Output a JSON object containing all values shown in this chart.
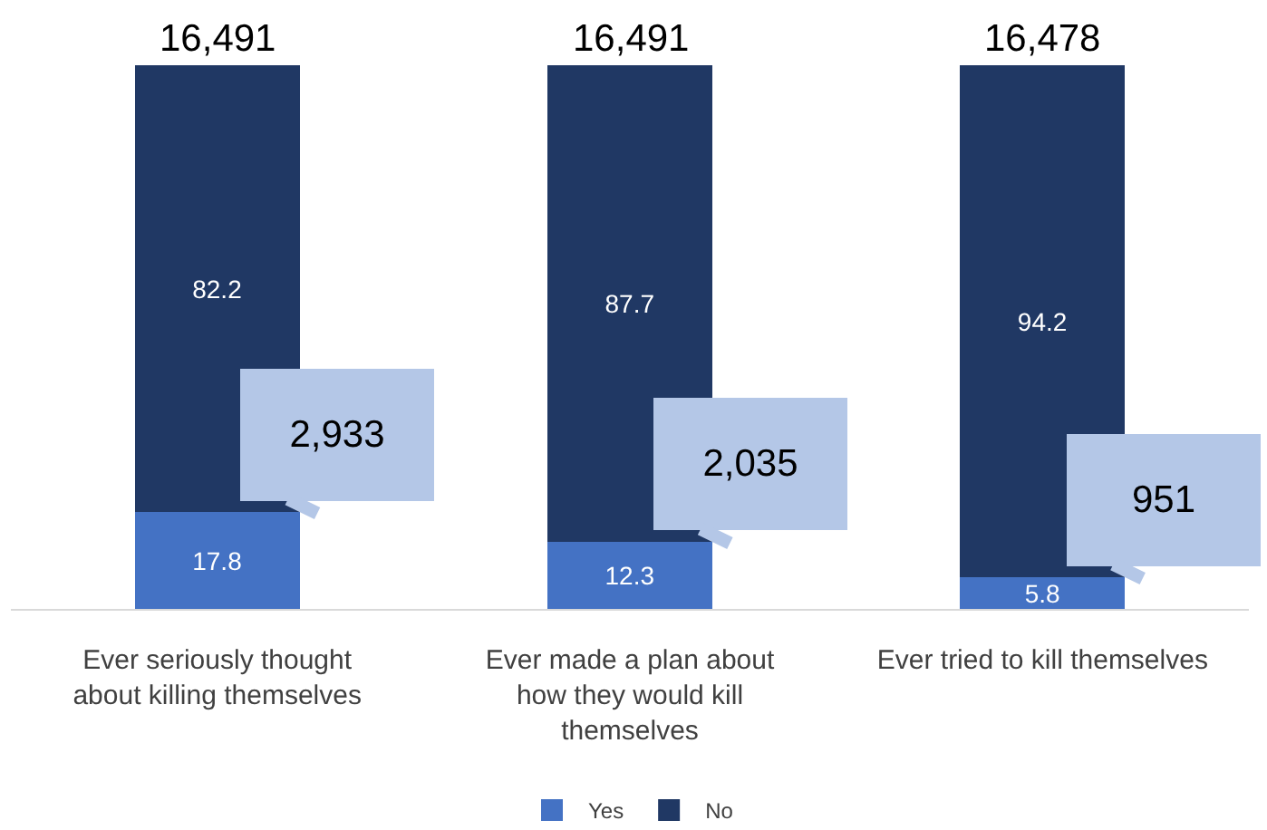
{
  "chart_data": {
    "type": "bar",
    "stacked": true,
    "categories": [
      "Ever seriously thought about killing themselves",
      "Ever made a plan about how they would kill themselves",
      "Ever tried to kill themselves"
    ],
    "series": [
      {
        "name": "Yes",
        "color": "#4472c4",
        "values": [
          17.8,
          12.3,
          5.8
        ]
      },
      {
        "name": "No",
        "color": "#203864",
        "values": [
          82.2,
          87.7,
          94.2
        ]
      }
    ],
    "data_labels": true,
    "annotations": [
      {
        "text": "16,491",
        "x": "Ever seriously thought about killing themselves",
        "y": 100
      },
      {
        "text": "16,491",
        "x": "Ever made a plan about how they would kill themselves",
        "y": 100
      },
      {
        "text": "16,478",
        "x": "Ever tried to kill themselves",
        "y": 100
      },
      {
        "text": "2,933",
        "x": "Ever seriously thought about killing themselves",
        "y": 17.8
      },
      {
        "text": "2,035",
        "x": "Ever made a plan about how they would kill themselves",
        "y": 12.3
      },
      {
        "text": "951",
        "x": "Ever tried to kill themselves",
        "y": 5.8
      }
    ],
    "legend": "bottom"
  }
}
